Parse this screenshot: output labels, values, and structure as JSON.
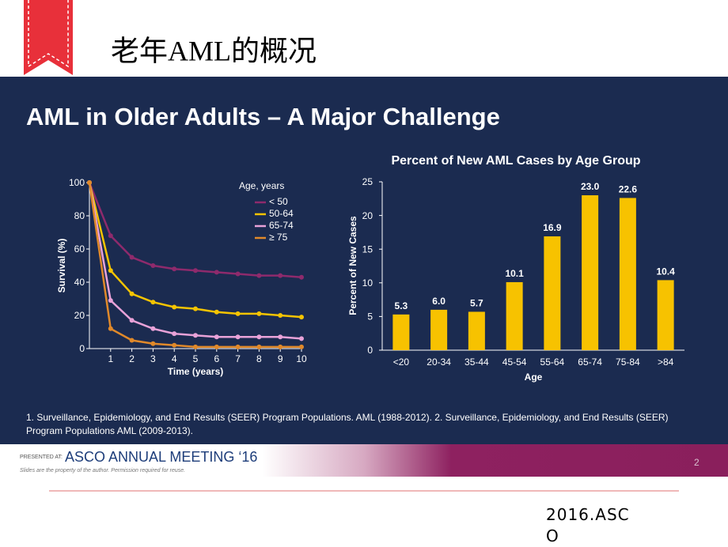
{
  "header": {
    "title": "老年AML的概况"
  },
  "slide": {
    "heading": "AML in Older Adults – A Major Challenge",
    "footnote": "1. Surveillance, Epidemiology, and End Results (SEER) Program Populations. AML (1988-2012). 2. Surveillance, Epidemiology, and End Results (SEER) Program Populations AML (2009-2013).",
    "presented_at": "PRESENTED AT:",
    "meeting": "ASCO ANNUAL MEETING ‘16",
    "disclaimer": "Slides are the property of the author. Permission required for reuse.",
    "page_number": 2
  },
  "source": "2016.ASCO",
  "chart_data": [
    {
      "type": "line",
      "x_label": "Time (years)",
      "y_label": "Survival (%)",
      "legend_title": "Age, years",
      "legend": "upper right",
      "x": [
        0,
        1,
        2,
        3,
        4,
        5,
        6,
        7,
        8,
        9,
        10
      ],
      "series": [
        {
          "name": "< 50",
          "color": "#8e2a6c",
          "values": [
            100,
            68,
            55,
            50,
            48,
            47,
            46,
            45,
            44,
            44,
            43
          ]
        },
        {
          "name": "50-64",
          "color": "#f5c400",
          "values": [
            100,
            47,
            33,
            28,
            25,
            24,
            22,
            21,
            21,
            20,
            19
          ]
        },
        {
          "name": "65-74",
          "color": "#e8a2d8",
          "values": [
            100,
            29,
            17,
            12,
            9,
            8,
            7,
            7,
            7,
            7,
            6
          ]
        },
        {
          "name": "≥ 75",
          "color": "#e0892a",
          "values": [
            100,
            12,
            5,
            3,
            2,
            1,
            1,
            1,
            1,
            1,
            1
          ]
        }
      ],
      "xlim": [
        0,
        10
      ],
      "xticks": [
        1,
        2,
        3,
        4,
        5,
        6,
        7,
        8,
        9,
        10
      ],
      "ylim": [
        0,
        100
      ],
      "yticks": [
        0,
        20,
        40,
        60,
        80,
        100
      ]
    },
    {
      "type": "bar",
      "title": "Percent of New AML Cases by Age Group",
      "x_label": "Age",
      "y_label": "Percent of New Cases",
      "color": "#f7c200",
      "categories": [
        "<20",
        "20-34",
        "35-44",
        "45-54",
        "55-64",
        "65-74",
        "75-84",
        ">84"
      ],
      "values": [
        5.3,
        6.0,
        5.7,
        10.1,
        16.9,
        23.0,
        22.6,
        10.4
      ],
      "value_labels": [
        "5.3",
        "6.0",
        "5.7",
        "10.1",
        "16.9",
        "23.0",
        "22.6",
        "10.4"
      ],
      "ylim": [
        0,
        25
      ],
      "yticks": [
        0,
        5,
        10,
        15,
        20,
        25
      ]
    }
  ]
}
